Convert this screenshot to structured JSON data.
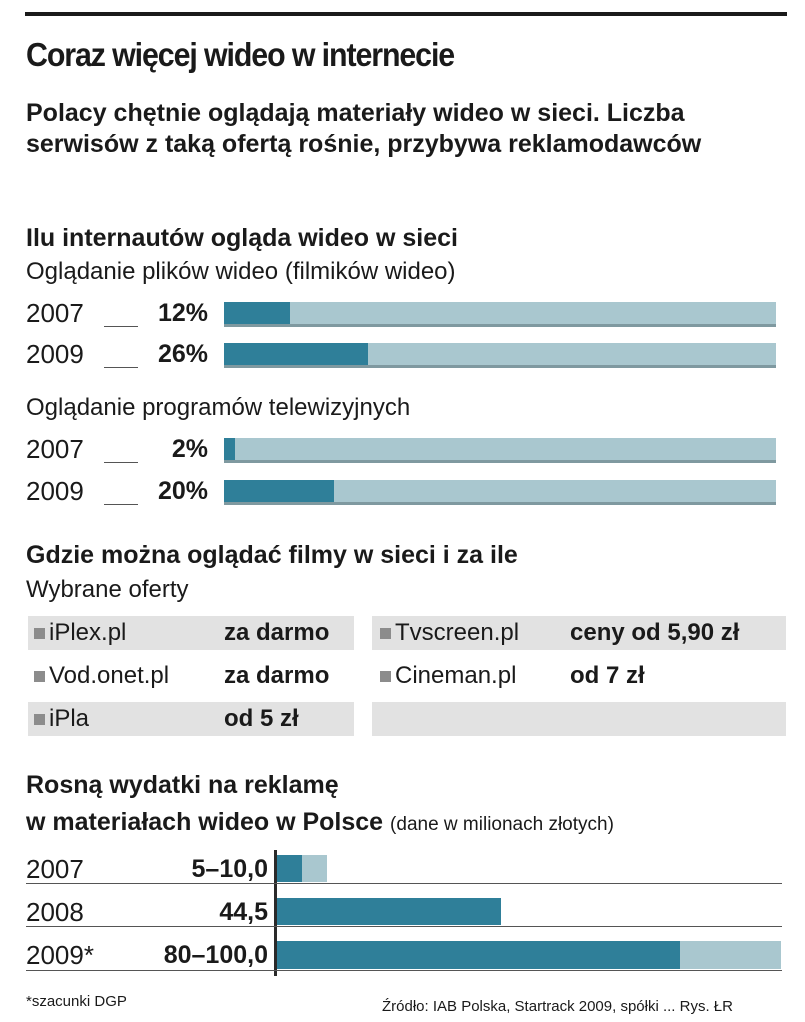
{
  "title": "Coraz więcej wideo w internecie",
  "lead": "Polacy chętnie oglądają materiały wideo w sieci. Liczba serwisów z taką ofertą rośnie, przybywa reklamodawców",
  "section1": {
    "heading": "Ilu internautów ogląda wideo w sieci",
    "group1_label": "Oglądanie plików wideo (filmików wideo)",
    "group2_label": "Oglądanie programów telewizyjnych"
  },
  "section2": {
    "heading": "Gdzie można oglądać filmy w sieci i za ile",
    "sub": "Wybrane oferty",
    "offers": [
      {
        "name": "iPlex.pl",
        "price": "za darmo"
      },
      {
        "name": "Vod.onet.pl",
        "price": "za darmo"
      },
      {
        "name": "iPla",
        "price": "od 5 zł"
      },
      {
        "name": "Tvscreen.pl",
        "price": "ceny od 5,90 zł"
      },
      {
        "name": "Cineman.pl",
        "price": "od 7 zł"
      }
    ]
  },
  "section3": {
    "heading_line1": "Rosną wydatki na reklamę",
    "heading_line2": "w materiałach wideo w Polsce",
    "unit_note": "(dane w milionach złotych)"
  },
  "footnote": "*szacunki DGP",
  "source": "Źródło: IAB Polska, Startrack 2009, spółki ... Rys. ŁR",
  "colors": {
    "dark_bar": "#2f7f99",
    "light_bar": "#a9c7cf",
    "cell": "#e2e2e2"
  },
  "chart_data": [
    {
      "type": "bar",
      "subtitle": "Oglądanie plików wideo (filmików wideo)",
      "categories": [
        "2007",
        "2009"
      ],
      "values": [
        12,
        26
      ],
      "labels": [
        "12%",
        "26%"
      ],
      "ylim": [
        0,
        100
      ]
    },
    {
      "type": "bar",
      "subtitle": "Oglądanie programów telewizyjnych",
      "categories": [
        "2007",
        "2009"
      ],
      "values": [
        2,
        20
      ],
      "labels": [
        "2%",
        "20%"
      ],
      "ylim": [
        0,
        100
      ]
    },
    {
      "type": "bar",
      "title": "Rosną wydatki na reklamę w materiałach wideo w Polsce",
      "categories": [
        "2007",
        "2008",
        "2009*"
      ],
      "labels": [
        "5–10,0",
        "44,5",
        "80–100,0"
      ],
      "low": [
        5,
        44.5,
        80
      ],
      "high": [
        10,
        44.5,
        100
      ],
      "ylim": [
        0,
        100
      ]
    }
  ]
}
